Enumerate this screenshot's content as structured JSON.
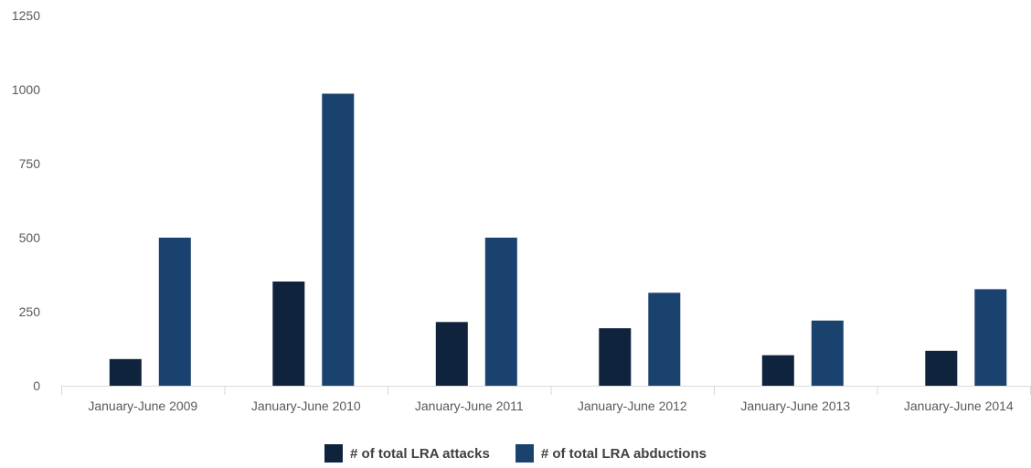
{
  "chart_data": {
    "type": "bar",
    "categories": [
      "January-June 2009",
      "January-June 2010",
      "January-June 2011",
      "January-June 2012",
      "January-June 2013",
      "January-June 2014"
    ],
    "series": [
      {
        "name": "# of total LRA attacks",
        "values": [
          90,
          352,
          215,
          194,
          103,
          118
        ],
        "color": "#0f233d"
      },
      {
        "name": "# of total LRA abductions",
        "values": [
          500,
          986,
          500,
          314,
          220,
          326
        ],
        "color": "#1a426e"
      }
    ],
    "yticks": [
      0,
      250,
      500,
      750,
      1000,
      1250
    ],
    "ylim": [
      0,
      1250
    ],
    "grid": false,
    "legend": "bottom-center",
    "colors": {
      "tick_text": "#595959",
      "axis": "#d9d9d9",
      "legend_text": "#404040"
    }
  }
}
